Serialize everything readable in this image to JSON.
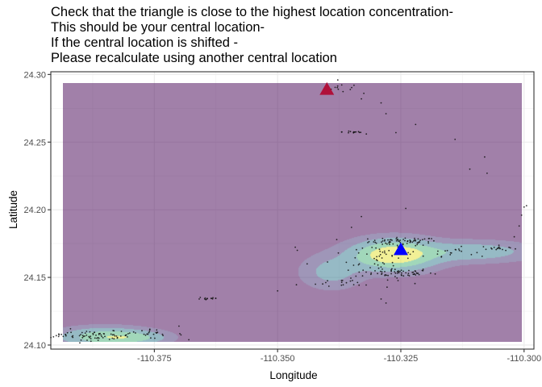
{
  "title_lines": [
    "Check that the triangle is close to the highest location concentration-",
    "This should be your central location-",
    "If the central location is shifted -",
    "Please recalculate using another central location"
  ],
  "chart_data": {
    "type": "scatter",
    "title": "Check that the triangle is close to the highest location concentration- This should be your central location- If the central location is shifted - Please recalculate using another central location",
    "xlabel": "Longitude",
    "ylabel": "Latitude",
    "xlim": [
      -110.396,
      -110.298
    ],
    "ylim": [
      24.097,
      24.302
    ],
    "x_ticks": [
      -110.375,
      -110.35,
      -110.325,
      -110.3
    ],
    "x_tick_labels": [
      "-110.375",
      "-110.350",
      "-110.325",
      "-110.300"
    ],
    "y_ticks": [
      24.1,
      24.15,
      24.2,
      24.25,
      24.3
    ],
    "y_tick_labels": [
      "24.10",
      "24.15",
      "24.20",
      "24.25",
      "24.30"
    ],
    "grid": true,
    "density_extent": {
      "x": [
        -110.3935,
        -110.3005
      ],
      "y": [
        24.1025,
        24.2935
      ]
    },
    "density_colors": [
      "#440154",
      "#3b528b",
      "#21918c",
      "#5ec962",
      "#fde725"
    ],
    "density_alpha": 0.5,
    "density_peaks": [
      {
        "x": -110.3265,
        "y": 24.1665,
        "sx": 0.0055,
        "sy": 0.0072,
        "w": 1.0
      },
      {
        "x": -110.3105,
        "y": 24.169,
        "sx": 0.008,
        "sy": 0.005,
        "w": 0.38
      },
      {
        "x": -110.339,
        "y": 24.154,
        "sx": 0.004,
        "sy": 0.008,
        "w": 0.3
      },
      {
        "x": -110.385,
        "y": 24.106,
        "sx": 0.006,
        "sy": 0.0045,
        "w": 0.65
      },
      {
        "x": -110.378,
        "y": 24.1055,
        "sx": 0.004,
        "sy": 0.003,
        "w": 0.28
      }
    ],
    "point_color": "#111111",
    "point_clusters": [
      {
        "x": -110.3245,
        "y": 24.1765,
        "sx": 0.0035,
        "sy": 0.0015,
        "n": 70
      },
      {
        "x": -110.3265,
        "y": 24.1535,
        "sx": 0.004,
        "sy": 0.0017,
        "n": 65
      },
      {
        "x": -110.329,
        "y": 24.166,
        "sx": 0.005,
        "sy": 0.0055,
        "n": 45
      },
      {
        "x": -110.3145,
        "y": 24.169,
        "sx": 0.0022,
        "sy": 0.0017,
        "n": 18
      },
      {
        "x": -110.305,
        "y": 24.1715,
        "sx": 0.0018,
        "sy": 0.001,
        "n": 18
      },
      {
        "x": -110.336,
        "y": 24.146,
        "sx": 0.005,
        "sy": 0.002,
        "n": 24
      },
      {
        "x": -110.3865,
        "y": 24.107,
        "sx": 0.0035,
        "sy": 0.0016,
        "n": 60
      },
      {
        "x": -110.377,
        "y": 24.108,
        "sx": 0.004,
        "sy": 0.0016,
        "n": 28
      },
      {
        "x": -110.394,
        "y": 24.107,
        "sx": 0.001,
        "sy": 0.0008,
        "n": 10
      },
      {
        "x": -110.364,
        "y": 24.1345,
        "sx": 0.0012,
        "sy": 0.0008,
        "n": 14
      },
      {
        "x": -110.3345,
        "y": 24.2575,
        "sx": 0.0012,
        "sy": 0.0006,
        "n": 14
      },
      {
        "x": -110.337,
        "y": 24.29,
        "sx": 0.0018,
        "sy": 0.0018,
        "n": 10
      }
    ],
    "scattered_points": [
      {
        "x": -110.34,
        "y": 24.289
      },
      {
        "x": -110.3345,
        "y": 24.292
      },
      {
        "x": -110.333,
        "y": 24.282
      },
      {
        "x": -110.3325,
        "y": 24.286
      },
      {
        "x": -110.328,
        "y": 24.271
      },
      {
        "x": -110.329,
        "y": 24.279
      },
      {
        "x": -110.332,
        "y": 24.256
      },
      {
        "x": -110.326,
        "y": 24.257
      },
      {
        "x": -110.322,
        "y": 24.263
      },
      {
        "x": -110.314,
        "y": 24.252
      },
      {
        "x": -110.311,
        "y": 24.23
      },
      {
        "x": -110.308,
        "y": 24.239
      },
      {
        "x": -110.3075,
        "y": 24.227
      },
      {
        "x": -110.3,
        "y": 24.202
      },
      {
        "x": -110.2995,
        "y": 24.203
      },
      {
        "x": -110.3005,
        "y": 24.196
      },
      {
        "x": -110.301,
        "y": 24.188
      },
      {
        "x": -110.302,
        "y": 24.18
      },
      {
        "x": -110.35,
        "y": 24.14
      },
      {
        "x": -110.329,
        "y": 24.134
      },
      {
        "x": -110.328,
        "y": 24.131
      },
      {
        "x": -110.324,
        "y": 24.201
      },
      {
        "x": -110.333,
        "y": 24.195
      },
      {
        "x": -110.335,
        "y": 24.187
      },
      {
        "x": -110.338,
        "y": 24.178
      },
      {
        "x": -110.346,
        "y": 24.17
      },
      {
        "x": -110.344,
        "y": 24.16
      },
      {
        "x": -110.392,
        "y": 24.112
      },
      {
        "x": -110.37,
        "y": 24.114
      }
    ],
    "center_marker": {
      "x": -110.325,
      "y": 24.1705,
      "color": "#0000ff",
      "shape": "triangle"
    },
    "shifted_marker": {
      "x": -110.34,
      "y": 24.289,
      "color": "#b0103a",
      "shape": "triangle"
    }
  }
}
